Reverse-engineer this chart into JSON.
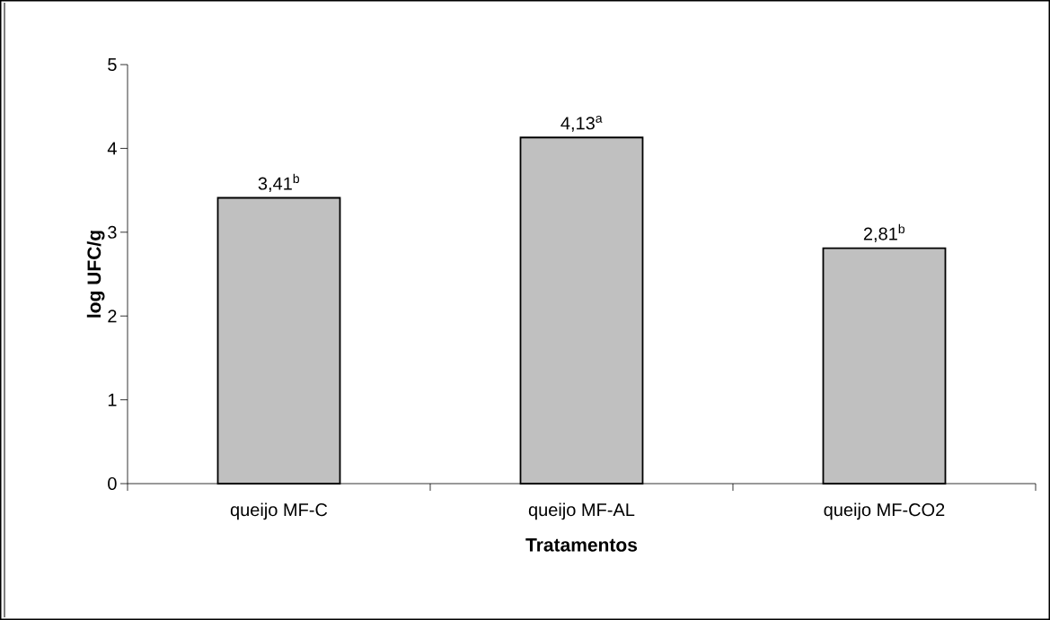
{
  "chart_data": {
    "type": "bar",
    "xlabel": "Tratamentos",
    "ylabel": "log UFC/g",
    "categories": [
      "queijo MF-C",
      "queijo MF-AL",
      "queijo MF-CO2"
    ],
    "values": [
      3.41,
      4.13,
      2.81
    ],
    "value_labels": [
      "3,41$^{b}$",
      "4,13$^{a}$",
      "2,81$^{b}$"
    ],
    "color": "#c0c0c0",
    "ylim": [
      0,
      5
    ],
    "yticks": [
      0,
      1,
      2,
      3,
      4,
      5
    ]
  }
}
